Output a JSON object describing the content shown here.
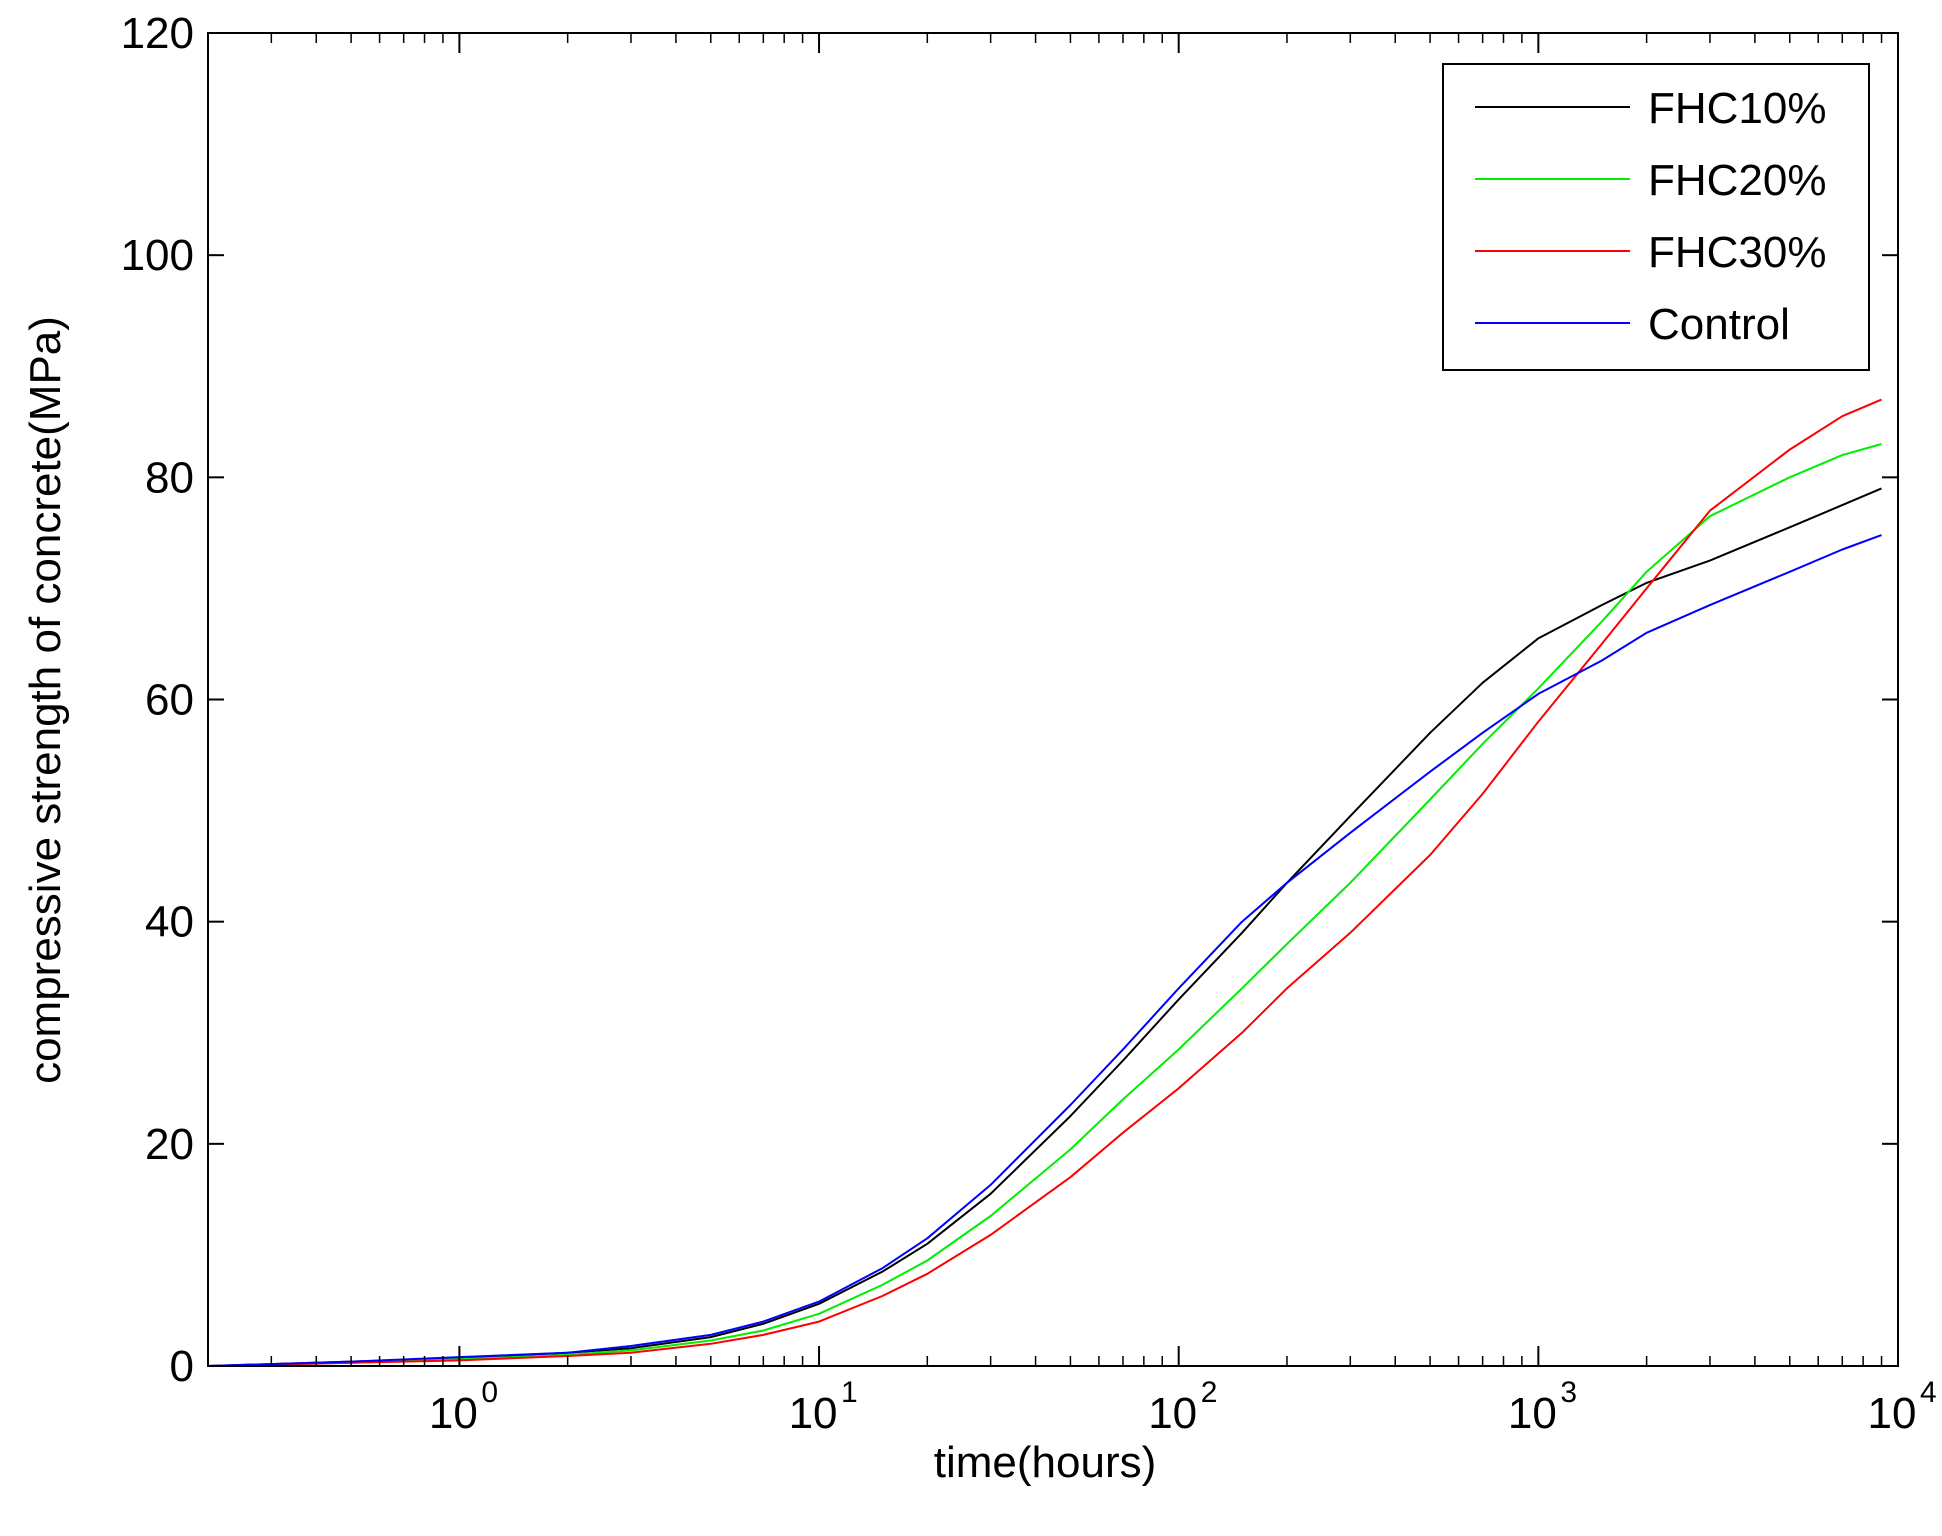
{
  "chart_data": {
    "type": "line",
    "title": "",
    "xlabel": "time(hours)",
    "ylabel": "compressive strength of concrete(MPa)",
    "xscale": "log",
    "xlim": [
      0.2,
      10000
    ],
    "ylim": [
      0,
      120
    ],
    "grid": false,
    "legend_position": "top-right",
    "yticks": [
      "0",
      "20",
      "40",
      "60",
      "80",
      "100",
      "120"
    ],
    "xticks": [
      {
        "base": "10",
        "exp": "0",
        "value": 1
      },
      {
        "base": "10",
        "exp": "1",
        "value": 10
      },
      {
        "base": "10",
        "exp": "2",
        "value": 100
      },
      {
        "base": "10",
        "exp": "3",
        "value": 1000
      },
      {
        "base": "10",
        "exp": "4",
        "value": 10000
      }
    ],
    "series": [
      {
        "name": "FHC10%",
        "color": "#000000",
        "x": [
          0.2,
          0.5,
          1,
          2,
          3,
          5,
          7,
          10,
          15,
          20,
          30,
          50,
          70,
          100,
          150,
          200,
          300,
          500,
          700,
          1000,
          1500,
          2000,
          3000,
          5000,
          7000,
          9000
        ],
        "y": [
          0,
          0.4,
          0.7,
          1.2,
          1.6,
          2.6,
          3.8,
          5.6,
          8.5,
          11.0,
          15.5,
          22.5,
          27.5,
          33.0,
          39.0,
          43.5,
          49.5,
          57.0,
          61.5,
          65.5,
          68.5,
          70.5,
          72.5,
          75.5,
          77.5,
          79.0
        ]
      },
      {
        "name": "FHC20%",
        "color": "#00ee00",
        "x": [
          0.2,
          0.5,
          1,
          2,
          3,
          5,
          7,
          10,
          15,
          20,
          30,
          50,
          70,
          100,
          150,
          200,
          300,
          500,
          700,
          1000,
          1500,
          2000,
          3000,
          5000,
          7000,
          9000
        ],
        "y": [
          0,
          0.3,
          0.6,
          1.0,
          1.4,
          2.3,
          3.2,
          4.7,
          7.3,
          9.5,
          13.5,
          19.5,
          24.0,
          28.5,
          34.0,
          38.0,
          43.5,
          51.0,
          56.0,
          61.0,
          67.0,
          71.5,
          76.5,
          80.0,
          82.0,
          83.0
        ]
      },
      {
        "name": "FHC30%",
        "color": "#ff0000",
        "x": [
          0.2,
          0.5,
          1,
          2,
          3,
          5,
          7,
          10,
          15,
          20,
          30,
          50,
          70,
          100,
          150,
          200,
          300,
          500,
          700,
          1000,
          1500,
          2000,
          3000,
          5000,
          7000,
          9000
        ],
        "y": [
          0,
          0.3,
          0.5,
          0.9,
          1.2,
          2.0,
          2.8,
          4.0,
          6.3,
          8.3,
          11.8,
          17.0,
          21.0,
          25.0,
          30.0,
          34.0,
          39.0,
          46.0,
          51.5,
          58.0,
          65.0,
          70.0,
          77.0,
          82.5,
          85.5,
          87.0
        ]
      },
      {
        "name": "Control",
        "color": "#0000ff",
        "x": [
          0.2,
          0.5,
          1,
          2,
          3,
          5,
          7,
          10,
          15,
          20,
          30,
          50,
          70,
          100,
          150,
          200,
          300,
          500,
          700,
          1000,
          1500,
          2000,
          3000,
          5000,
          7000,
          9000
        ],
        "y": [
          0,
          0.4,
          0.8,
          1.2,
          1.8,
          2.8,
          4.0,
          5.8,
          8.8,
          11.5,
          16.3,
          23.5,
          28.5,
          34.0,
          40.0,
          43.5,
          48.0,
          53.5,
          57.0,
          60.5,
          63.5,
          66.0,
          68.5,
          71.5,
          73.5,
          74.8
        ]
      }
    ]
  }
}
